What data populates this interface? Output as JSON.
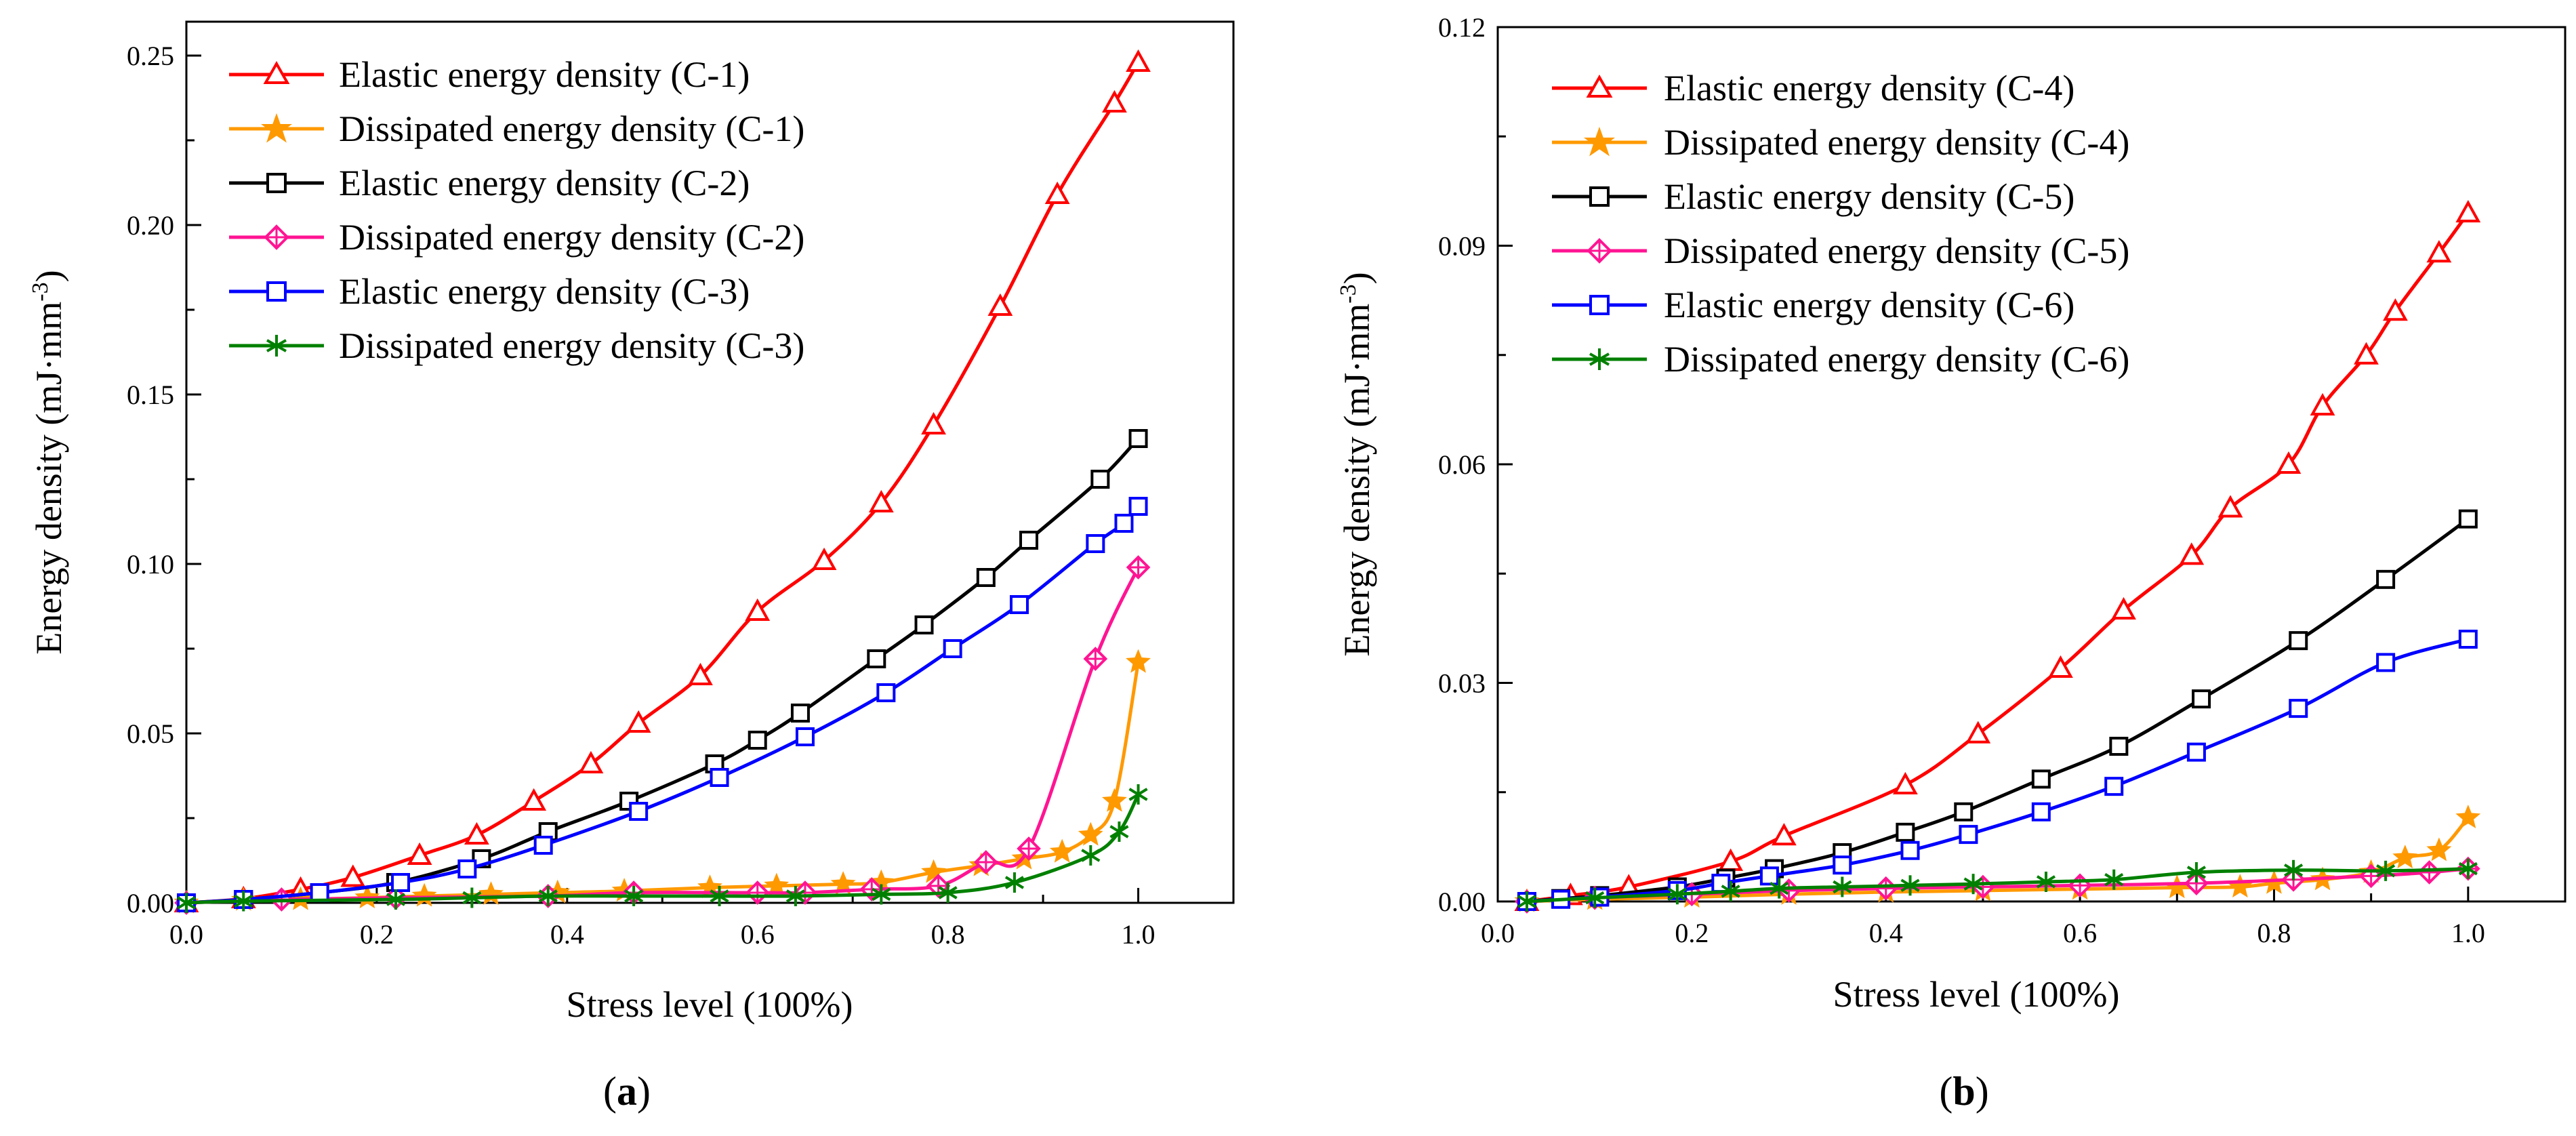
{
  "chart_data": [
    {
      "type": "line",
      "panel_label": "a",
      "xlabel": "Stress level (100%)",
      "ylabel": "Energy density (mJ·mm",
      "ylabel_exp": "-3",
      "ylabel_close": ")",
      "xlim": [
        0.0,
        1.1
      ],
      "ylim": [
        0.0,
        0.26
      ],
      "xticks": [
        0.0,
        0.2,
        0.4,
        0.6,
        0.8,
        1.0
      ],
      "xtick_labels": [
        "0.0",
        "0.2",
        "0.4",
        "0.6",
        "0.8",
        "1.0"
      ],
      "yticks": [
        0.0,
        0.05,
        0.1,
        0.15,
        0.2,
        0.25
      ],
      "ytick_labels": [
        "0.00",
        "0.05",
        "0.10",
        "0.15",
        "0.20",
        "0.25"
      ],
      "legend_position": "top-left",
      "series": [
        {
          "name": "Elastic energy density (C-1)",
          "color": "#ff0000",
          "marker": "triangle",
          "x": [
            0.0,
            0.06,
            0.12,
            0.175,
            0.245,
            0.305,
            0.365,
            0.425,
            0.475,
            0.54,
            0.6,
            0.67,
            0.73,
            0.785,
            0.855,
            0.915,
            0.975,
            1.0
          ],
          "y": [
            0.0,
            0.0012,
            0.004,
            0.0075,
            0.014,
            0.02,
            0.03,
            0.041,
            0.053,
            0.067,
            0.086,
            0.101,
            0.118,
            0.141,
            0.176,
            0.209,
            0.236,
            0.248
          ]
        },
        {
          "name": "Dissipated energy density (C-1)",
          "color": "#ff9900",
          "marker": "star",
          "x": [
            0.0,
            0.06,
            0.12,
            0.19,
            0.25,
            0.32,
            0.39,
            0.46,
            0.55,
            0.62,
            0.69,
            0.73,
            0.785,
            0.835,
            0.88,
            0.92,
            0.95,
            0.975,
            1.0
          ],
          "y": [
            0.0,
            0.0008,
            0.001,
            0.0015,
            0.002,
            0.0025,
            0.003,
            0.0035,
            0.0045,
            0.005,
            0.0055,
            0.006,
            0.009,
            0.011,
            0.013,
            0.015,
            0.02,
            0.03,
            0.071
          ]
        },
        {
          "name": "Elastic energy density (C-2)",
          "color": "#000000",
          "marker": "square",
          "x": [
            0.0,
            0.06,
            0.14,
            0.22,
            0.31,
            0.38,
            0.465,
            0.555,
            0.6,
            0.645,
            0.725,
            0.775,
            0.84,
            0.885,
            0.96,
            1.0
          ],
          "y": [
            0.0,
            0.001,
            0.003,
            0.006,
            0.013,
            0.021,
            0.03,
            0.041,
            0.048,
            0.056,
            0.072,
            0.082,
            0.096,
            0.107,
            0.125,
            0.137
          ]
        },
        {
          "name": "Dissipated energy density (C-2)",
          "color": "#ff1493",
          "marker": "diamond",
          "x": [
            0.0,
            0.1,
            0.22,
            0.38,
            0.47,
            0.6,
            0.65,
            0.72,
            0.79,
            0.84,
            0.885,
            0.955,
            1.0
          ],
          "y": [
            0.0,
            0.001,
            0.0015,
            0.002,
            0.003,
            0.003,
            0.003,
            0.004,
            0.005,
            0.012,
            0.016,
            0.072,
            0.099
          ]
        },
        {
          "name": "Elastic energy density (C-3)",
          "color": "#0000ff",
          "marker": "square",
          "x": [
            0.0,
            0.06,
            0.14,
            0.225,
            0.295,
            0.375,
            0.475,
            0.56,
            0.65,
            0.735,
            0.805,
            0.875,
            0.955,
            0.985,
            1.0
          ],
          "y": [
            0.0,
            0.001,
            0.003,
            0.006,
            0.01,
            0.017,
            0.027,
            0.037,
            0.049,
            0.062,
            0.075,
            0.088,
            0.106,
            0.112,
            0.117
          ]
        },
        {
          "name": "Dissipated energy density (C-3)",
          "color": "#008000",
          "marker": "asterisk",
          "x": [
            0.0,
            0.06,
            0.22,
            0.3,
            0.38,
            0.47,
            0.56,
            0.64,
            0.73,
            0.8,
            0.87,
            0.95,
            0.98,
            1.0
          ],
          "y": [
            0.0,
            0.0005,
            0.001,
            0.0015,
            0.002,
            0.002,
            0.002,
            0.002,
            0.0025,
            0.003,
            0.006,
            0.014,
            0.021,
            0.032
          ]
        }
      ]
    },
    {
      "type": "line",
      "panel_label": "b",
      "xlabel": "Stress level (100%)",
      "ylabel": "Energy density (mJ·mm",
      "ylabel_exp": "-3",
      "ylabel_close": ")",
      "xlim": [
        0.0,
        1.1
      ],
      "ylim": [
        0.0,
        0.12
      ],
      "xticks": [
        0.0,
        0.2,
        0.4,
        0.6,
        0.8,
        1.0
      ],
      "xtick_labels": [
        "0.0",
        "0.2",
        "0.4",
        "0.6",
        "0.8",
        "1.0"
      ],
      "yticks": [
        0.0,
        0.03,
        0.06,
        0.09,
        0.12
      ],
      "ytick_labels": [
        "0.00",
        "0.03",
        "0.06",
        "0.09",
        "0.12"
      ],
      "legend_position": "top-left",
      "series": [
        {
          "name": "Elastic energy density (C-4)",
          "color": "#ff0000",
          "marker": "triangle",
          "x": [
            0.03,
            0.075,
            0.135,
            0.24,
            0.295,
            0.42,
            0.495,
            0.58,
            0.645,
            0.715,
            0.755,
            0.815,
            0.85,
            0.895,
            0.925,
            0.97,
            1.0
          ],
          "y": [
            0.0,
            0.0008,
            0.002,
            0.0055,
            0.009,
            0.016,
            0.023,
            0.032,
            0.04,
            0.0475,
            0.054,
            0.06,
            0.068,
            0.075,
            0.081,
            0.089,
            0.0945
          ]
        },
        {
          "name": "Dissipated energy density (C-4)",
          "color": "#ff9900",
          "marker": "star",
          "x": [
            0.03,
            0.1,
            0.2,
            0.3,
            0.4,
            0.5,
            0.6,
            0.7,
            0.765,
            0.8,
            0.85,
            0.9,
            0.935,
            0.97,
            1.0
          ],
          "y": [
            0.0,
            0.0003,
            0.0006,
            0.001,
            0.0013,
            0.0015,
            0.0017,
            0.0019,
            0.002,
            0.0025,
            0.003,
            0.004,
            0.006,
            0.007,
            0.0115
          ]
        },
        {
          "name": "Elastic energy density (C-5)",
          "color": "#000000",
          "marker": "square",
          "x": [
            0.03,
            0.065,
            0.105,
            0.185,
            0.235,
            0.285,
            0.355,
            0.42,
            0.48,
            0.56,
            0.64,
            0.725,
            0.825,
            0.915,
            1.0
          ],
          "y": [
            0.0,
            0.0004,
            0.0008,
            0.002,
            0.0032,
            0.0045,
            0.0067,
            0.0095,
            0.0123,
            0.0168,
            0.0213,
            0.0278,
            0.0358,
            0.0442,
            0.0525
          ]
        },
        {
          "name": "Dissipated energy density (C-5)",
          "color": "#ff1493",
          "marker": "diamond",
          "x": [
            0.03,
            0.1,
            0.2,
            0.3,
            0.4,
            0.5,
            0.6,
            0.72,
            0.82,
            0.9,
            0.96,
            1.0
          ],
          "y": [
            0.0,
            0.0005,
            0.001,
            0.0015,
            0.0018,
            0.002,
            0.0022,
            0.0025,
            0.003,
            0.0035,
            0.004,
            0.0045
          ]
        },
        {
          "name": "Elastic energy density (C-6)",
          "color": "#0000ff",
          "marker": "square",
          "x": [
            0.03,
            0.065,
            0.105,
            0.185,
            0.23,
            0.28,
            0.355,
            0.425,
            0.485,
            0.56,
            0.635,
            0.72,
            0.825,
            0.915,
            1.0
          ],
          "y": [
            0.0,
            0.0003,
            0.0006,
            0.0015,
            0.0025,
            0.0035,
            0.005,
            0.007,
            0.0092,
            0.0123,
            0.0158,
            0.0205,
            0.0265,
            0.0328,
            0.036
          ]
        },
        {
          "name": "Dissipated energy density (C-6)",
          "color": "#008000",
          "marker": "asterisk",
          "x": [
            0.03,
            0.1,
            0.185,
            0.24,
            0.29,
            0.355,
            0.425,
            0.49,
            0.565,
            0.635,
            0.72,
            0.82,
            0.915,
            1.0
          ],
          "y": [
            0.0,
            0.0005,
            0.001,
            0.0014,
            0.0018,
            0.002,
            0.0022,
            0.0024,
            0.0027,
            0.003,
            0.004,
            0.0043,
            0.0042,
            0.0045
          ]
        }
      ]
    }
  ]
}
